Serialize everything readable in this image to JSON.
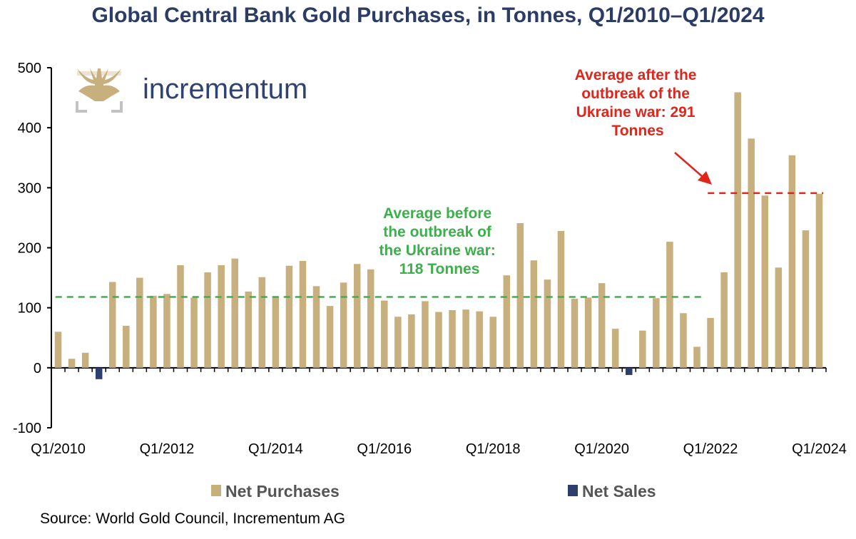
{
  "title": "Global Central Bank Gold Purchases, in Tonnes, Q1/2010–Q1/2024",
  "logo": {
    "text": "incrementum"
  },
  "source": "Source: World Gold Council, Incrementum AG",
  "colors": {
    "purchases": "#c8b07e",
    "sales": "#2e3e6e",
    "before_avg": "#3cb04a",
    "after_avg": "#e0251b",
    "title": "#2b3d66"
  },
  "chart_data": {
    "type": "bar",
    "title": "Global Central Bank Gold Purchases, in Tonnes, Q1/2010–Q1/2024",
    "xlabel": "",
    "ylabel": "",
    "ylim": [
      -100,
      500
    ],
    "yticks": [
      "500",
      "400",
      "300",
      "200",
      "100",
      "0",
      "-100"
    ],
    "ytick_values": [
      500,
      400,
      300,
      200,
      100,
      0,
      -100
    ],
    "xtick_labels": [
      "Q1/2010",
      "Q1/2012",
      "Q1/2014",
      "Q1/2016",
      "Q1/2018",
      "Q1/2020",
      "Q1/2022",
      "Q1/2024"
    ],
    "xtick_indices": [
      0,
      8,
      16,
      24,
      32,
      40,
      48,
      56
    ],
    "categories": [
      "Q1/2010",
      "Q2/2010",
      "Q3/2010",
      "Q4/2010",
      "Q1/2011",
      "Q2/2011",
      "Q3/2011",
      "Q4/2011",
      "Q1/2012",
      "Q2/2012",
      "Q3/2012",
      "Q4/2012",
      "Q1/2013",
      "Q2/2013",
      "Q3/2013",
      "Q4/2013",
      "Q1/2014",
      "Q2/2014",
      "Q3/2014",
      "Q4/2014",
      "Q1/2015",
      "Q2/2015",
      "Q3/2015",
      "Q4/2015",
      "Q1/2016",
      "Q2/2016",
      "Q3/2016",
      "Q4/2016",
      "Q1/2017",
      "Q2/2017",
      "Q3/2017",
      "Q4/2017",
      "Q1/2018",
      "Q2/2018",
      "Q3/2018",
      "Q4/2018",
      "Q1/2019",
      "Q2/2019",
      "Q3/2019",
      "Q4/2019",
      "Q1/2020",
      "Q2/2020",
      "Q3/2020",
      "Q4/2020",
      "Q1/2021",
      "Q2/2021",
      "Q3/2021",
      "Q4/2021",
      "Q1/2022",
      "Q2/2022",
      "Q3/2022",
      "Q4/2022",
      "Q1/2023",
      "Q2/2023",
      "Q3/2023",
      "Q4/2023",
      "Q1/2024"
    ],
    "series": [
      {
        "name": "Net Purchases",
        "values": [
          60,
          15,
          25,
          null,
          143,
          70,
          150,
          120,
          123,
          171,
          117,
          159,
          171,
          182,
          127,
          151,
          119,
          170,
          178,
          136,
          103,
          142,
          173,
          164,
          112,
          85,
          89,
          111,
          93,
          96,
          97,
          94,
          85,
          154,
          241,
          179,
          147,
          228,
          115,
          117,
          141,
          65,
          null,
          62,
          116,
          210,
          91,
          35,
          83,
          159,
          459,
          382,
          287,
          167,
          354,
          229,
          290
        ]
      },
      {
        "name": "Net Sales",
        "values": [
          null,
          null,
          null,
          -19,
          null,
          null,
          null,
          null,
          null,
          null,
          null,
          null,
          null,
          null,
          null,
          null,
          null,
          null,
          null,
          null,
          null,
          null,
          null,
          null,
          null,
          null,
          null,
          null,
          null,
          null,
          null,
          null,
          null,
          null,
          null,
          null,
          null,
          null,
          null,
          null,
          null,
          null,
          -12,
          null,
          null,
          null,
          null,
          null,
          null,
          null,
          null,
          null,
          null,
          null,
          null,
          null,
          null
        ]
      }
    ],
    "reference_lines": [
      {
        "label": "Average before the outbreak of the Ukraine war: 118 Tonnes",
        "lines": [
          "Average before",
          "the outbreak of",
          "the Ukraine war:",
          "118 Tonnes"
        ],
        "value": 118,
        "from": "Q1/2010",
        "to": "Q4/2021",
        "color": "#3cb04a",
        "style": "dashed"
      },
      {
        "label": "Average after the outbreak of the Ukraine war: 291 Tonnes",
        "lines": [
          "Average after the",
          "outbreak of the",
          "Ukraine war: 291",
          "Tonnes"
        ],
        "value": 291,
        "from": "Q1/2022",
        "to": "Q1/2024",
        "color": "#e0251b",
        "style": "dashed"
      }
    ],
    "legend": {
      "placement": "bottom",
      "entries": [
        "Net Purchases",
        "Net Sales"
      ]
    },
    "grid": false
  }
}
